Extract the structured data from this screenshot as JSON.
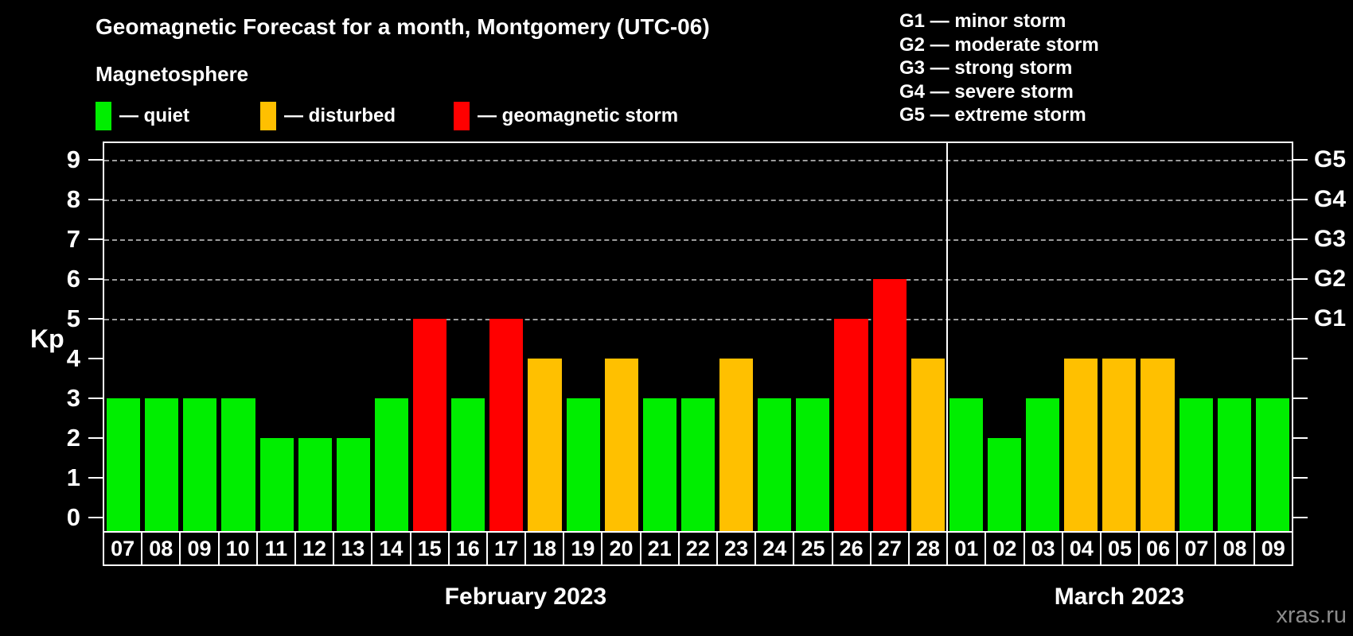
{
  "subtitle": "Magnetosphere",
  "watermark": "xras.ru",
  "legend": {
    "items": [
      {
        "name": "quiet",
        "label": "— quiet"
      },
      {
        "name": "disturbed",
        "label": "— disturbed"
      },
      {
        "name": "storm",
        "label": "— geomagnetic storm"
      }
    ]
  },
  "g_legend": [
    "G1 — minor storm",
    "G2 — moderate storm",
    "G3 — strong storm",
    "G4 — severe storm",
    "G5 — extreme storm"
  ],
  "colors": {
    "quiet": "#00ee00",
    "disturbed": "#ffc000",
    "storm": "#ff0000",
    "grid": "#9c9c9c",
    "axis": "#ffffff",
    "background": "#000000",
    "watermark": "#8c8c8c"
  },
  "chart_data": {
    "type": "bar",
    "title": "Geomagnetic Forecast for a month, Montgomery (UTC-06)",
    "ylabel": "Kp",
    "xlabel": "",
    "ylim": [
      0,
      9.75
    ],
    "grid": "dashed horizontal lines at Kp 5,6,7,8,9",
    "grid_levels": [
      5,
      6,
      7,
      8,
      9
    ],
    "left_ticks": [
      0,
      1,
      2,
      3,
      4,
      5,
      6,
      7,
      8,
      9
    ],
    "right_axis": [
      {
        "label": "G1",
        "kp": 5
      },
      {
        "label": "G2",
        "kp": 6
      },
      {
        "label": "G3",
        "kp": 7
      },
      {
        "label": "G4",
        "kp": 8
      },
      {
        "label": "G5",
        "kp": 9
      }
    ],
    "legend_position": "top-left",
    "series": [
      {
        "name": "February 2023",
        "points": [
          {
            "day": "07",
            "kp": 3,
            "status": "quiet"
          },
          {
            "day": "08",
            "kp": 3,
            "status": "quiet"
          },
          {
            "day": "09",
            "kp": 3,
            "status": "quiet"
          },
          {
            "day": "10",
            "kp": 3,
            "status": "quiet"
          },
          {
            "day": "11",
            "kp": 2,
            "status": "quiet"
          },
          {
            "day": "12",
            "kp": 2,
            "status": "quiet"
          },
          {
            "day": "13",
            "kp": 2,
            "status": "quiet"
          },
          {
            "day": "14",
            "kp": 3,
            "status": "quiet"
          },
          {
            "day": "15",
            "kp": 5,
            "status": "storm"
          },
          {
            "day": "16",
            "kp": 3,
            "status": "quiet"
          },
          {
            "day": "17",
            "kp": 5,
            "status": "storm"
          },
          {
            "day": "18",
            "kp": 4,
            "status": "disturbed"
          },
          {
            "day": "19",
            "kp": 3,
            "status": "quiet"
          },
          {
            "day": "20",
            "kp": 4,
            "status": "disturbed"
          },
          {
            "day": "21",
            "kp": 3,
            "status": "quiet"
          },
          {
            "day": "22",
            "kp": 3,
            "status": "quiet"
          },
          {
            "day": "23",
            "kp": 4,
            "status": "disturbed"
          },
          {
            "day": "24",
            "kp": 3,
            "status": "quiet"
          },
          {
            "day": "25",
            "kp": 3,
            "status": "quiet"
          },
          {
            "day": "26",
            "kp": 5,
            "status": "storm"
          },
          {
            "day": "27",
            "kp": 6,
            "status": "storm"
          },
          {
            "day": "28",
            "kp": 4,
            "status": "disturbed"
          }
        ]
      },
      {
        "name": "March 2023",
        "points": [
          {
            "day": "01",
            "kp": 3,
            "status": "quiet"
          },
          {
            "day": "02",
            "kp": 2,
            "status": "quiet"
          },
          {
            "day": "03",
            "kp": 3,
            "status": "quiet"
          },
          {
            "day": "04",
            "kp": 4,
            "status": "disturbed"
          },
          {
            "day": "05",
            "kp": 4,
            "status": "disturbed"
          },
          {
            "day": "06",
            "kp": 4,
            "status": "disturbed"
          },
          {
            "day": "07",
            "kp": 3,
            "status": "quiet"
          },
          {
            "day": "08",
            "kp": 3,
            "status": "quiet"
          },
          {
            "day": "09",
            "kp": 3,
            "status": "quiet"
          }
        ]
      }
    ]
  }
}
